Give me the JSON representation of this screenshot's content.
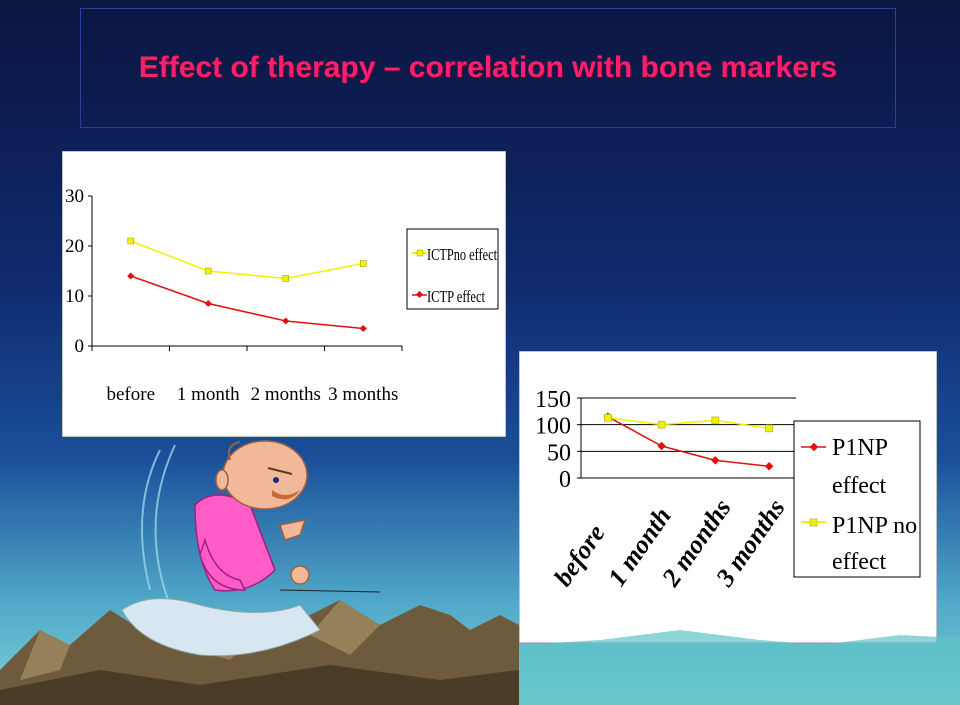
{
  "title": "Effect of therapy – correlation with bone markers",
  "colors": {
    "title": "#ff1e6e",
    "no_effect_series": "#f2f200",
    "effect_series": "#e01010",
    "chart_bg": "#ffffff"
  },
  "chart_data": [
    {
      "type": "line",
      "categories": [
        "before",
        "1 month",
        "2 months",
        "3 months"
      ],
      "yticks": [
        "0",
        "10",
        "20",
        "30"
      ],
      "ylim": [
        0,
        30
      ],
      "grid": false,
      "legend_position": "right",
      "series": [
        {
          "name": "ICTPno effect",
          "values": [
            21,
            15,
            13.5,
            16.5
          ],
          "color": "#f2f200",
          "marker": "square"
        },
        {
          "name": "ICTP effect",
          "values": [
            14,
            8.5,
            5,
            3.5
          ],
          "color": "#e01010",
          "marker": "diamond"
        }
      ]
    },
    {
      "type": "line",
      "categories": [
        "before",
        "1 month",
        "2 months",
        "3 months"
      ],
      "yticks": [
        "0",
        "50",
        "100",
        "150"
      ],
      "ylim": [
        0,
        150
      ],
      "grid": true,
      "legend_position": "right",
      "series": [
        {
          "name": "P1NP effect",
          "values": [
            115,
            60,
            33,
            22
          ],
          "color": "#e01010",
          "marker": "diamond"
        },
        {
          "name": "P1NP no effect",
          "values": [
            113,
            100,
            108,
            93
          ],
          "color": "#f2f200",
          "marker": "square"
        }
      ]
    }
  ]
}
